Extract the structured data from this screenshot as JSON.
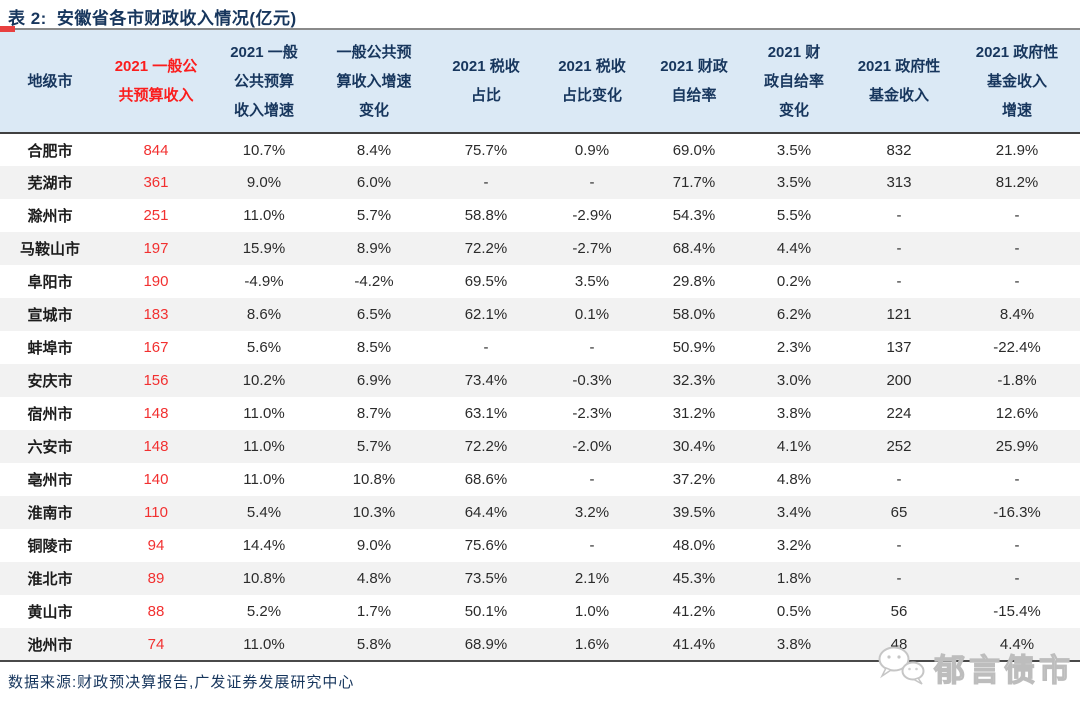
{
  "title": {
    "prefix": "表 2:",
    "text": "安徽省各市财政收入情况(亿元)"
  },
  "table": {
    "columns": [
      {
        "label": "地级市",
        "red": false
      },
      {
        "label": "2021 一般公\n共预算收入",
        "red": true
      },
      {
        "label": "2021 一般\n公共预算\n收入增速",
        "red": false
      },
      {
        "label": "一般公共预\n算收入增速\n变化",
        "red": false
      },
      {
        "label": "2021 税收\n占比",
        "red": false
      },
      {
        "label": "2021 税收\n占比变化",
        "red": false
      },
      {
        "label": "2021 财政\n自给率",
        "red": false
      },
      {
        "label": "2021 财\n政自给率\n变化",
        "red": false
      },
      {
        "label": "2021 政府性\n基金收入",
        "red": false
      },
      {
        "label": "2021 政府性\n基金收入\n增速",
        "red": false
      }
    ],
    "rows": [
      {
        "city": "合肥市",
        "values": [
          "844",
          "10.7%",
          "8.4%",
          "75.7%",
          "0.9%",
          "69.0%",
          "3.5%",
          "832",
          "21.9%"
        ]
      },
      {
        "city": "芜湖市",
        "values": [
          "361",
          "9.0%",
          "6.0%",
          "-",
          "-",
          "71.7%",
          "3.5%",
          "313",
          "81.2%"
        ]
      },
      {
        "city": "滁州市",
        "values": [
          "251",
          "11.0%",
          "5.7%",
          "58.8%",
          "-2.9%",
          "54.3%",
          "5.5%",
          "-",
          "-"
        ]
      },
      {
        "city": "马鞍山市",
        "values": [
          "197",
          "15.9%",
          "8.9%",
          "72.2%",
          "-2.7%",
          "68.4%",
          "4.4%",
          "-",
          "-"
        ]
      },
      {
        "city": "阜阳市",
        "values": [
          "190",
          "-4.9%",
          "-4.2%",
          "69.5%",
          "3.5%",
          "29.8%",
          "0.2%",
          "-",
          "-"
        ]
      },
      {
        "city": "宣城市",
        "values": [
          "183",
          "8.6%",
          "6.5%",
          "62.1%",
          "0.1%",
          "58.0%",
          "6.2%",
          "121",
          "8.4%"
        ]
      },
      {
        "city": "蚌埠市",
        "values": [
          "167",
          "5.6%",
          "8.5%",
          "-",
          "-",
          "50.9%",
          "2.3%",
          "137",
          "-22.4%"
        ]
      },
      {
        "city": "安庆市",
        "values": [
          "156",
          "10.2%",
          "6.9%",
          "73.4%",
          "-0.3%",
          "32.3%",
          "3.0%",
          "200",
          "-1.8%"
        ]
      },
      {
        "city": "宿州市",
        "values": [
          "148",
          "11.0%",
          "8.7%",
          "63.1%",
          "-2.3%",
          "31.2%",
          "3.8%",
          "224",
          "12.6%"
        ]
      },
      {
        "city": "六安市",
        "values": [
          "148",
          "11.0%",
          "5.7%",
          "72.2%",
          "-2.0%",
          "30.4%",
          "4.1%",
          "252",
          "25.9%"
        ]
      },
      {
        "city": "亳州市",
        "values": [
          "140",
          "11.0%",
          "10.8%",
          "68.6%",
          "-",
          "37.2%",
          "4.8%",
          "-",
          "-"
        ]
      },
      {
        "city": "淮南市",
        "values": [
          "110",
          "5.4%",
          "10.3%",
          "64.4%",
          "3.2%",
          "39.5%",
          "3.4%",
          "65",
          "-16.3%"
        ]
      },
      {
        "city": "铜陵市",
        "values": [
          "94",
          "14.4%",
          "9.0%",
          "75.6%",
          "-",
          "48.0%",
          "3.2%",
          "-",
          "-"
        ]
      },
      {
        "city": "淮北市",
        "values": [
          "89",
          "10.8%",
          "4.8%",
          "73.5%",
          "2.1%",
          "45.3%",
          "1.8%",
          "-",
          "-"
        ]
      },
      {
        "city": "黄山市",
        "values": [
          "88",
          "5.2%",
          "1.7%",
          "50.1%",
          "1.0%",
          "41.2%",
          "0.5%",
          "56",
          "-15.4%"
        ]
      },
      {
        "city": "池州市",
        "values": [
          "74",
          "11.0%",
          "5.8%",
          "68.9%",
          "1.6%",
          "41.4%",
          "3.8%",
          "48",
          "4.4%"
        ]
      }
    ]
  },
  "footer": {
    "source": "数据来源:财政预决算报告,广发证券发展研究中心"
  },
  "watermark": {
    "icon": "wechat-icon",
    "text": "郁言债市"
  },
  "colors": {
    "accent_red": "#f23030",
    "header_bg": "#dbe9f5",
    "navy": "#17365d",
    "stripe": "#f2f2f2"
  }
}
